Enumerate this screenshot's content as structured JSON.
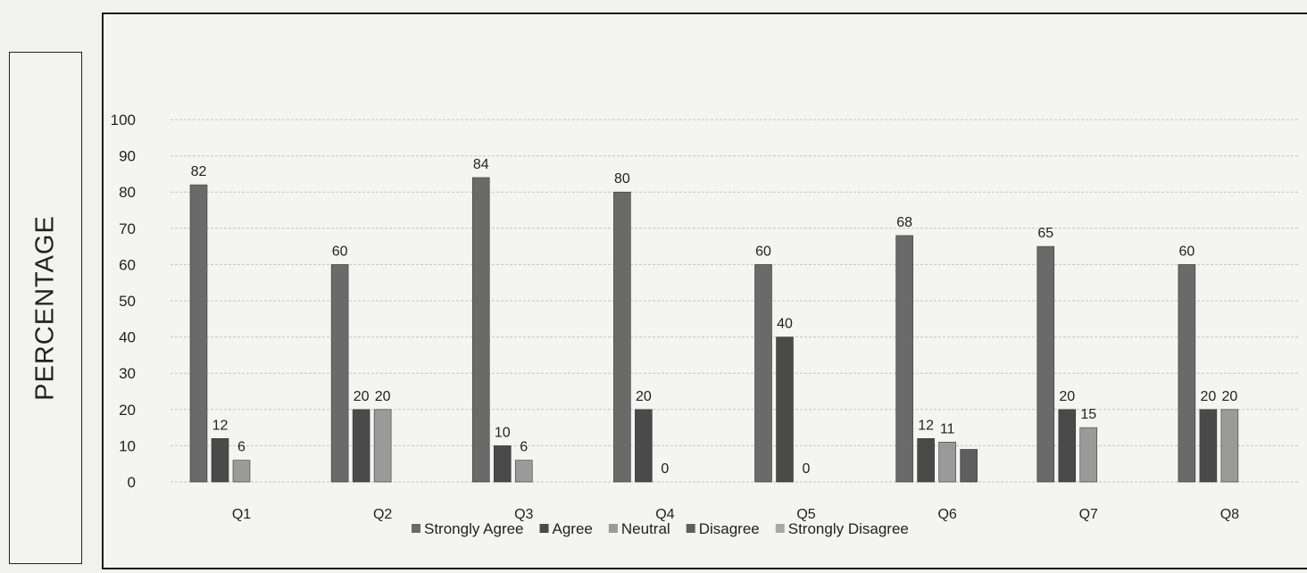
{
  "chart_data": {
    "type": "bar",
    "title": "",
    "ylabel": "PERCENTAGE",
    "xlabel": "",
    "ylim": [
      0,
      100
    ],
    "yticks": [
      0,
      10,
      20,
      30,
      40,
      50,
      60,
      70,
      80,
      90,
      100
    ],
    "grid": true,
    "legend_position": "bottom",
    "categories": [
      "Q1",
      "Q2",
      "Q3",
      "Q4",
      "Q5",
      "Q6",
      "Q7",
      "Q8"
    ],
    "series": [
      {
        "name": "Strongly Agree",
        "color": "#6a6a6a",
        "values": [
          82,
          60,
          84,
          80,
          60,
          68,
          65,
          60
        ],
        "labels": [
          "82",
          "60",
          "84",
          "80",
          "60",
          "68",
          "65",
          "60"
        ]
      },
      {
        "name": "Agree",
        "color": "#4a4a4a",
        "values": [
          12,
          20,
          10,
          20,
          40,
          12,
          20,
          20
        ],
        "labels": [
          "12",
          "20",
          "10",
          "20",
          "40",
          "12",
          "20",
          "20"
        ]
      },
      {
        "name": "Neutral",
        "color": "#9a9a9a",
        "values": [
          6,
          20,
          6,
          0,
          0,
          11,
          15,
          20
        ],
        "labels": [
          "6",
          "20",
          "6",
          "0",
          "0",
          "11",
          "15",
          "20"
        ]
      },
      {
        "name": "Disagree",
        "color": "#5e5e5e",
        "values": [
          0,
          0,
          0,
          0,
          0,
          9,
          0,
          0
        ],
        "labels": [
          "",
          "",
          "",
          "",
          "",
          "",
          "",
          ""
        ]
      },
      {
        "name": "Strongly Disagree",
        "color": "#a8a8a8",
        "values": [
          0,
          0,
          0,
          0,
          0,
          0,
          0,
          0
        ],
        "labels": [
          "",
          "",
          "",
          "",
          "",
          "",
          "",
          ""
        ]
      }
    ]
  }
}
